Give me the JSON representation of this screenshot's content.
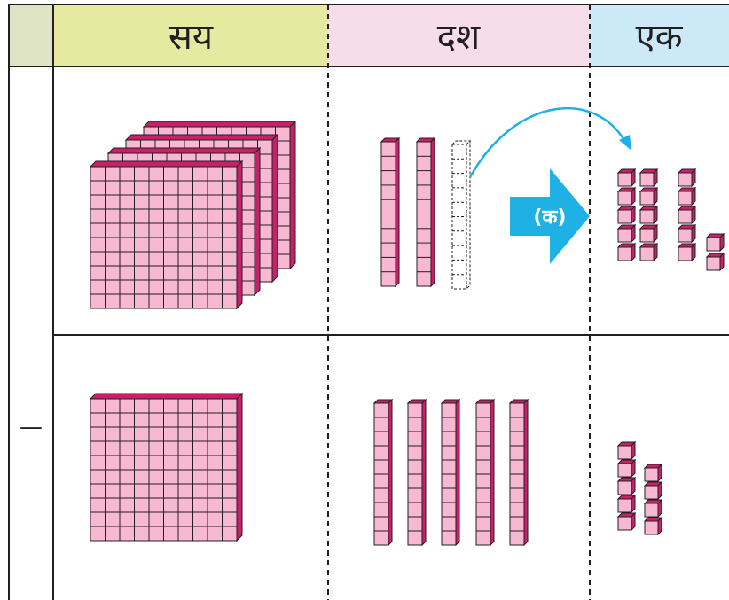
{
  "header": {
    "columns": [
      "सय",
      "दश",
      "एक"
    ]
  },
  "arrow_label": "(क)",
  "operator": "—"
}
